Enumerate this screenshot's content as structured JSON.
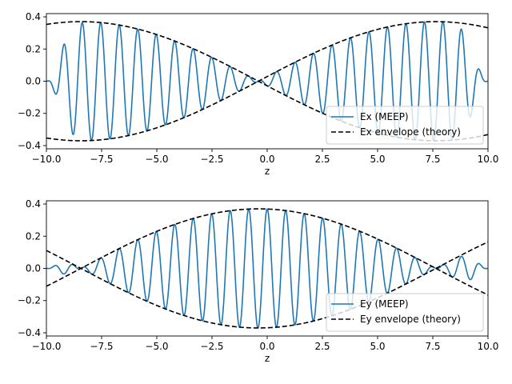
{
  "chart_data": [
    {
      "type": "line",
      "title": "",
      "xlabel": "z",
      "ylabel": "",
      "xlim": [
        -10.0,
        10.0
      ],
      "ylim": [
        -0.42,
        0.42
      ],
      "xticks": [
        "−10.0",
        "−7.5",
        "−5.0",
        "−2.5",
        "0.0",
        "2.5",
        "5.0",
        "7.5",
        "10.0"
      ],
      "xtick_values": [
        -10.0,
        -7.5,
        -5.0,
        -2.5,
        0.0,
        2.5,
        5.0,
        7.5,
        10.0
      ],
      "yticks": [
        "−0.4",
        "−0.2",
        "0.0",
        "0.2",
        "0.4"
      ],
      "ytick_values": [
        -0.4,
        -0.2,
        0.0,
        0.2,
        0.4
      ],
      "legend_position": "lower-right",
      "grid": false,
      "field_model": {
        "amplitude": 0.37,
        "envelope_k": 0.1954,
        "envelope_phase": 1.649,
        "carrier_k": 7.5,
        "ramp_width": 0.8
      },
      "series": [
        {
          "name": "Ex (MEEP)",
          "style": "solid",
          "color": "#1f77b4",
          "role": "field"
        },
        {
          "name": "Ex envelope (theory)",
          "style": "dashed",
          "color": "#000000",
          "role": "envelope"
        }
      ]
    },
    {
      "type": "line",
      "title": "",
      "xlabel": "z",
      "ylabel": "",
      "xlim": [
        -10.0,
        10.0
      ],
      "ylim": [
        -0.42,
        0.42
      ],
      "xticks": [
        "−10.0",
        "−7.5",
        "−5.0",
        "−2.5",
        "0.0",
        "2.5",
        "5.0",
        "7.5",
        "10.0"
      ],
      "xtick_values": [
        -10.0,
        -7.5,
        -5.0,
        -2.5,
        0.0,
        2.5,
        5.0,
        7.5,
        10.0
      ],
      "yticks": [
        "−0.4",
        "−0.2",
        "0.0",
        "0.2",
        "0.4"
      ],
      "ytick_values": [
        -0.4,
        -0.2,
        0.0,
        0.2,
        0.4
      ],
      "legend_position": "lower-right",
      "grid": false,
      "field_model": {
        "amplitude": 0.37,
        "envelope_k": 0.1954,
        "envelope_phase": 0.078,
        "carrier_k": 7.5,
        "ramp_width": 0.8
      },
      "series": [
        {
          "name": "Ey (MEEP)",
          "style": "solid",
          "color": "#1f77b4",
          "role": "field"
        },
        {
          "name": "Ey envelope (theory)",
          "style": "dashed",
          "color": "#000000",
          "role": "envelope"
        }
      ]
    }
  ]
}
